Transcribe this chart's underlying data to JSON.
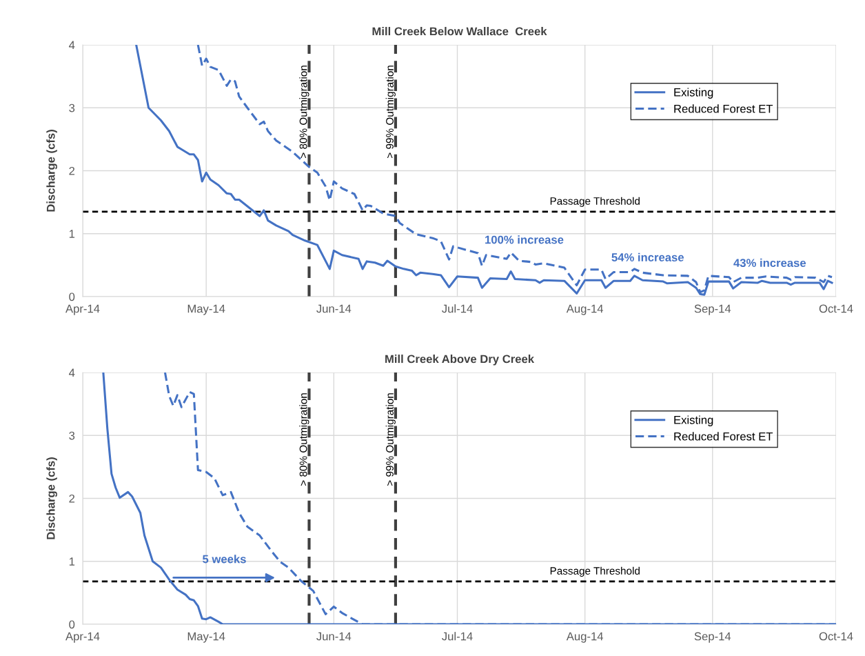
{
  "chart_data": [
    {
      "type": "line",
      "title": "Mill Creek Below Wallace  Creek",
      "ylabel": "Discharge (cfs)",
      "xlim": [
        "2014-04-01",
        "2014-10-01"
      ],
      "ylim": [
        0,
        4
      ],
      "xticks": [
        {
          "value": "2014-04-01",
          "label": "Apr-14"
        },
        {
          "value": "2014-05-01",
          "label": "May-14"
        },
        {
          "value": "2014-06-01",
          "label": "Jun-14"
        },
        {
          "value": "2014-07-01",
          "label": "Jul-14"
        },
        {
          "value": "2014-08-01",
          "label": "Aug-14"
        },
        {
          "value": "2014-09-01",
          "label": "Sep-14"
        },
        {
          "value": "2014-10-01",
          "label": "Oct-14"
        }
      ],
      "yticks": [
        0,
        1,
        2,
        3,
        4
      ],
      "grid": true,
      "legend": "top right",
      "series": [
        {
          "name": "Existing",
          "color": "#4472c4",
          "line_style": "solid",
          "x": [
            "2014-04-14",
            "2014-04-17",
            "2014-04-20",
            "2014-04-22",
            "2014-04-24",
            "2014-04-25",
            "2014-04-27",
            "2014-04-28",
            "2014-04-29",
            "2014-04-30",
            "2014-05-01",
            "2014-05-02",
            "2014-05-04",
            "2014-05-06",
            "2014-05-07",
            "2014-05-08",
            "2014-05-09",
            "2014-05-14",
            "2014-05-15",
            "2014-05-16",
            "2014-05-18",
            "2014-05-21",
            "2014-05-22",
            "2014-05-25",
            "2014-05-28",
            "2014-05-31",
            "2014-06-01",
            "2014-06-03",
            "2014-06-07",
            "2014-06-08",
            "2014-06-09",
            "2014-06-11",
            "2014-06-13",
            "2014-06-14",
            "2014-06-16",
            "2014-06-18",
            "2014-06-20",
            "2014-06-21",
            "2014-06-22",
            "2014-06-25",
            "2014-06-27",
            "2014-06-29",
            "2014-07-01",
            "2014-07-06",
            "2014-07-07",
            "2014-07-09",
            "2014-07-13",
            "2014-07-14",
            "2014-07-15",
            "2014-07-20",
            "2014-07-21",
            "2014-07-22",
            "2014-07-27",
            "2014-07-30",
            "2014-08-01",
            "2014-08-05",
            "2014-08-06",
            "2014-08-08",
            "2014-08-12",
            "2014-08-13",
            "2014-08-15",
            "2014-08-20",
            "2014-08-21",
            "2014-08-26",
            "2014-08-28",
            "2014-08-29",
            "2014-08-30",
            "2014-08-31",
            "2014-09-05",
            "2014-09-06",
            "2014-09-08",
            "2014-09-12",
            "2014-09-13",
            "2014-09-15",
            "2014-09-19",
            "2014-09-20",
            "2014-09-21",
            "2014-09-27",
            "2014-09-28",
            "2014-09-29",
            "2014-09-30"
          ],
          "values": [
            4.0,
            3.0,
            2.8,
            2.63,
            2.38,
            2.34,
            2.26,
            2.26,
            2.17,
            1.83,
            1.97,
            1.86,
            1.77,
            1.64,
            1.63,
            1.54,
            1.54,
            1.28,
            1.37,
            1.21,
            1.13,
            1.04,
            0.98,
            0.89,
            0.82,
            0.44,
            0.73,
            0.66,
            0.6,
            0.44,
            0.56,
            0.54,
            0.49,
            0.57,
            0.48,
            0.44,
            0.41,
            0.34,
            0.38,
            0.36,
            0.34,
            0.15,
            0.32,
            0.3,
            0.14,
            0.29,
            0.28,
            0.4,
            0.28,
            0.26,
            0.22,
            0.26,
            0.25,
            0.05,
            0.26,
            0.26,
            0.14,
            0.25,
            0.25,
            0.33,
            0.26,
            0.24,
            0.21,
            0.23,
            0.14,
            0.04,
            0.03,
            0.24,
            0.24,
            0.13,
            0.23,
            0.22,
            0.25,
            0.22,
            0.22,
            0.19,
            0.22,
            0.22,
            0.12,
            0.25,
            0.22
          ]
        },
        {
          "name": "Reduced Forest ET",
          "color": "#4472c4",
          "line_style": "dashed",
          "x": [
            "2014-04-29",
            "2014-04-30",
            "2014-05-01",
            "2014-05-02",
            "2014-05-04",
            "2014-05-06",
            "2014-05-07",
            "2014-05-08",
            "2014-05-09",
            "2014-05-11",
            "2014-05-14",
            "2014-05-15",
            "2014-05-16",
            "2014-05-18",
            "2014-05-22",
            "2014-05-26",
            "2014-05-28",
            "2014-05-30",
            "2014-05-31",
            "2014-06-01",
            "2014-06-03",
            "2014-06-06",
            "2014-06-08",
            "2014-06-09",
            "2014-06-10",
            "2014-06-13",
            "2014-06-16",
            "2014-06-17",
            "2014-06-21",
            "2014-06-25",
            "2014-06-27",
            "2014-06-29",
            "2014-06-30",
            "2014-07-06",
            "2014-07-07",
            "2014-07-08",
            "2014-07-13",
            "2014-07-14",
            "2014-07-16",
            "2014-07-19",
            "2014-07-20",
            "2014-07-22",
            "2014-07-27",
            "2014-07-30",
            "2014-08-01",
            "2014-08-05",
            "2014-08-06",
            "2014-08-08",
            "2014-08-12",
            "2014-08-13",
            "2014-08-15",
            "2014-08-20",
            "2014-08-26",
            "2014-08-28",
            "2014-08-29",
            "2014-08-30",
            "2014-08-31",
            "2014-09-05",
            "2014-09-06",
            "2014-09-08",
            "2014-09-12",
            "2014-09-14",
            "2014-09-19",
            "2014-09-20",
            "2014-09-21",
            "2014-09-26",
            "2014-09-28",
            "2014-09-29",
            "2014-09-30"
          ],
          "values": [
            4.0,
            3.67,
            3.78,
            3.65,
            3.6,
            3.35,
            3.45,
            3.42,
            3.18,
            3.0,
            2.74,
            2.78,
            2.63,
            2.48,
            2.3,
            2.06,
            1.97,
            1.75,
            1.53,
            1.83,
            1.72,
            1.63,
            1.37,
            1.45,
            1.44,
            1.32,
            1.28,
            1.17,
            0.99,
            0.93,
            0.88,
            0.59,
            0.8,
            0.69,
            0.49,
            0.66,
            0.6,
            0.7,
            0.57,
            0.55,
            0.51,
            0.53,
            0.46,
            0.18,
            0.43,
            0.43,
            0.28,
            0.39,
            0.39,
            0.44,
            0.38,
            0.34,
            0.33,
            0.23,
            0.07,
            0.1,
            0.33,
            0.31,
            0.23,
            0.3,
            0.3,
            0.32,
            0.3,
            0.27,
            0.31,
            0.3,
            0.23,
            0.33,
            0.31
          ]
        }
      ],
      "ref_lines": [
        {
          "axis": "x",
          "value": "2014-05-26",
          "label": "> 80% Outmigration",
          "color": "#404040",
          "line_style": "dashed"
        },
        {
          "axis": "x",
          "value": "2014-06-16",
          "label": "> 99% Outmigration",
          "color": "#404040",
          "line_style": "dashed"
        },
        {
          "axis": "y",
          "value": 1.35,
          "label": "Passage Threshold",
          "color": "#000000",
          "line_style": "dotted"
        }
      ],
      "annotations": [
        "100% increase",
        "54% increase",
        "43% increase"
      ]
    },
    {
      "type": "line",
      "title": "Mill Creek Above Dry Creek",
      "ylabel": "Discharge (cfs)",
      "xlim": [
        "2014-04-01",
        "2014-10-01"
      ],
      "ylim": [
        0,
        4
      ],
      "xticks": [
        {
          "value": "2014-04-01",
          "label": "Apr-14"
        },
        {
          "value": "2014-05-01",
          "label": "May-14"
        },
        {
          "value": "2014-06-01",
          "label": "Jun-14"
        },
        {
          "value": "2014-07-01",
          "label": "Jul-14"
        },
        {
          "value": "2014-08-01",
          "label": "Aug-14"
        },
        {
          "value": "2014-09-01",
          "label": "Sep-14"
        },
        {
          "value": "2014-10-01",
          "label": "Oct-14"
        }
      ],
      "yticks": [
        0,
        1,
        2,
        3,
        4
      ],
      "grid": true,
      "legend": "top right",
      "series": [
        {
          "name": "Existing",
          "color": "#4472c4",
          "line_style": "solid",
          "x": [
            "2014-04-06",
            "2014-04-07",
            "2014-04-08",
            "2014-04-09",
            "2014-04-10",
            "2014-04-12",
            "2014-04-13",
            "2014-04-15",
            "2014-04-16",
            "2014-04-18",
            "2014-04-20",
            "2014-04-22",
            "2014-04-24",
            "2014-04-26",
            "2014-04-27",
            "2014-04-28",
            "2014-04-29",
            "2014-04-30",
            "2014-05-01",
            "2014-05-02",
            "2014-05-04",
            "2014-05-05",
            "2014-10-01"
          ],
          "values": [
            4.0,
            3.1,
            2.39,
            2.17,
            2.01,
            2.1,
            2.03,
            1.77,
            1.41,
            1.0,
            0.9,
            0.71,
            0.55,
            0.47,
            0.4,
            0.38,
            0.29,
            0.09,
            0.08,
            0.11,
            0.04,
            0,
            0
          ]
        },
        {
          "name": "Reduced Forest ET",
          "color": "#4472c4",
          "line_style": "dashed",
          "x": [
            "2014-04-21",
            "2014-04-22",
            "2014-04-23",
            "2014-04-24",
            "2014-04-25",
            "2014-04-27",
            "2014-04-28",
            "2014-04-29",
            "2014-05-01",
            "2014-05-03",
            "2014-05-05",
            "2014-05-07",
            "2014-05-09",
            "2014-05-11",
            "2014-05-14",
            "2014-05-17",
            "2014-05-19",
            "2014-05-21",
            "2014-05-24",
            "2014-05-27",
            "2014-05-30",
            "2014-06-01",
            "2014-06-03",
            "2014-06-06",
            "2014-06-08",
            "2014-10-01"
          ],
          "values": [
            4.0,
            3.63,
            3.47,
            3.64,
            3.45,
            3.69,
            3.66,
            2.45,
            2.42,
            2.32,
            2.05,
            2.1,
            1.77,
            1.55,
            1.41,
            1.15,
            0.99,
            0.9,
            0.69,
            0.53,
            0.16,
            0.28,
            0.18,
            0.07,
            0,
            0
          ]
        }
      ],
      "ref_lines": [
        {
          "axis": "x",
          "value": "2014-05-26",
          "label": "> 80% Outmigration",
          "color": "#404040",
          "line_style": "dashed"
        },
        {
          "axis": "x",
          "value": "2014-06-16",
          "label": "> 99% Outmigration",
          "color": "#404040",
          "line_style": "dashed"
        },
        {
          "axis": "y",
          "value": 0.68,
          "label": "Passage Threshold",
          "color": "#000000",
          "line_style": "dotted"
        }
      ],
      "annotations": [
        "5 weeks"
      ]
    }
  ]
}
